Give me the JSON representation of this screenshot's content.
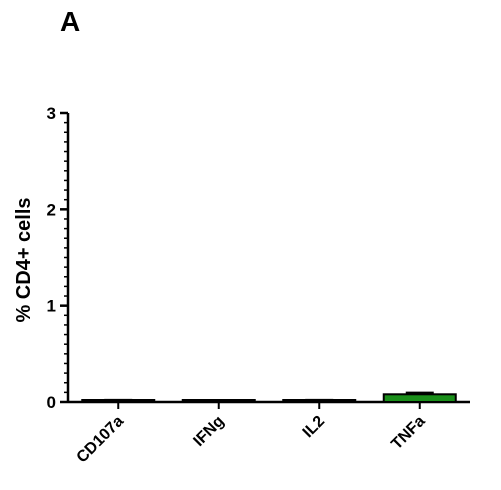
{
  "panel_label": "A",
  "chart_data": {
    "type": "bar",
    "title": "",
    "xlabel": "",
    "ylabel": "% CD4+ cells",
    "ylim": [
      0,
      3
    ],
    "yticks": [
      "0",
      "1",
      "2",
      "3"
    ],
    "categories": [
      "CD107a",
      "IFNg",
      "IL2",
      "TNFa"
    ],
    "values": [
      0.01,
      0.005,
      0.01,
      0.08
    ],
    "errors": [
      0.01,
      0.005,
      0.01,
      0.015
    ],
    "bar_colors": [
      "#ffffff",
      "#ffffff",
      "#ffffff",
      "#1a8f1a"
    ],
    "grid": false,
    "legend": "none"
  }
}
